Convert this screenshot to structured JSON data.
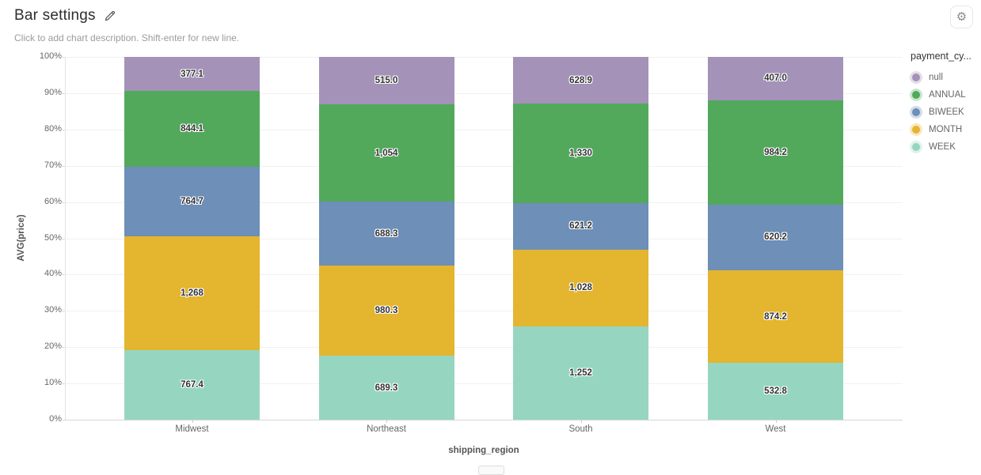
{
  "header": {
    "title": "Bar settings",
    "description_placeholder": "Click to add chart description. Shift-enter for new line.",
    "gear_glyph": "⚙"
  },
  "chart_data": {
    "type": "bar",
    "stacked": true,
    "normalized_percent": true,
    "grid": true,
    "xlabel": "shipping_region",
    "ylabel": "AVG(price)",
    "ylim": [
      0,
      100
    ],
    "y_tick_labels": [
      "0%",
      "10%",
      "20%",
      "30%",
      "40%",
      "50%",
      "60%",
      "70%",
      "80%",
      "90%",
      "100%"
    ],
    "categories": [
      "Midwest",
      "Northeast",
      "South",
      "West"
    ],
    "series": [
      {
        "name": "WEEK",
        "color": "#96d6c1",
        "values": [
          767.4,
          689.3,
          1252,
          532.8
        ],
        "labels": [
          "767.4",
          "689.3",
          "1,252",
          "532.8"
        ]
      },
      {
        "name": "MONTH",
        "color": "#e4b52f",
        "values": [
          1268,
          980.3,
          1028,
          874.2
        ],
        "labels": [
          "1,268",
          "980.3",
          "1,028",
          "874.2"
        ]
      },
      {
        "name": "BIWEEK",
        "color": "#6d8fb8",
        "values": [
          764.7,
          688.3,
          621.2,
          620.2
        ],
        "labels": [
          "764.7",
          "688.3",
          "621.2",
          "620.2"
        ]
      },
      {
        "name": "ANNUAL",
        "color": "#52a95c",
        "values": [
          844.1,
          1054,
          1330,
          984.2
        ],
        "labels": [
          "844.1",
          "1,054",
          "1,330",
          "984.2"
        ]
      },
      {
        "name": "null",
        "color": "#a492b8",
        "values": [
          377.1,
          515.0,
          628.9,
          407.0
        ],
        "labels": [
          "377.1",
          "515.0",
          "628.9",
          "407.0"
        ]
      }
    ],
    "legend": {
      "title": "payment_cy...",
      "position": "right",
      "items_top_to_bottom": [
        "null",
        "ANNUAL",
        "BIWEEK",
        "MONTH",
        "WEEK"
      ]
    }
  }
}
